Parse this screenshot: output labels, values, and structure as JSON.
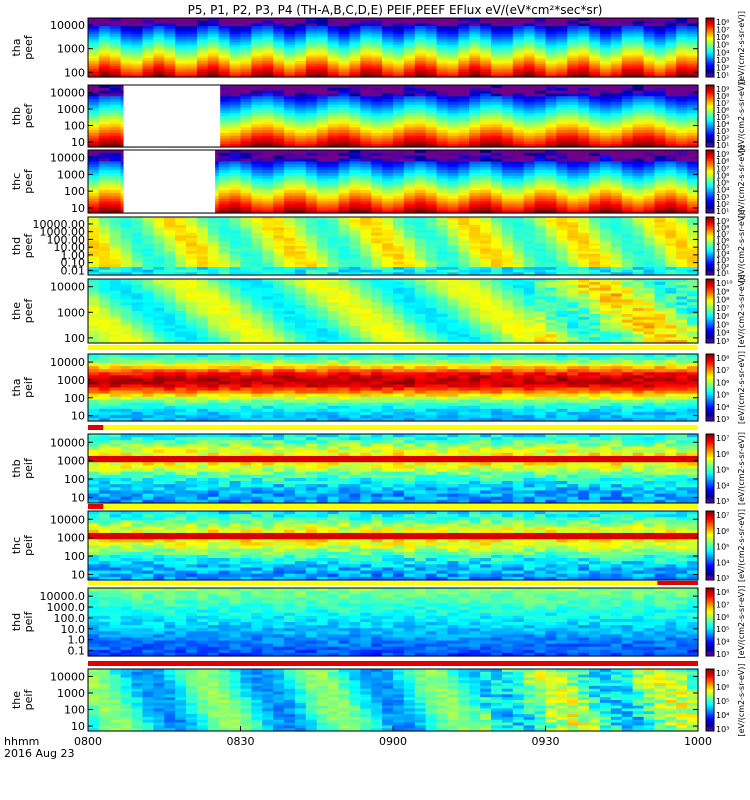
{
  "chart_data": {
    "type": "heatmap",
    "title": "P5, P1, P2, P3, P4 (TH-A,B,C,D,E) PEIF,PEEF EFlux eV/(eV*cm²*sec*sr)",
    "time_axis": {
      "ticks": [
        "0800",
        "0830",
        "0900",
        "0930",
        "1000"
      ],
      "label_lines": [
        "hhmm",
        "2016 Aug 23"
      ],
      "range": [
        "08:00",
        "10:00"
      ]
    },
    "colorbar_label": "[eV/(cm2-s-sr-eV)]",
    "panels": [
      {
        "id": "tha-peef",
        "label": [
          "tha",
          "peef"
        ],
        "y_scale": "log",
        "y_ticks": [
          "10000",
          "1000",
          "100"
        ],
        "colorbar_ticks": [
          "10⁸",
          "10⁷",
          "10⁶",
          "10⁵",
          "10⁴",
          "10³",
          "10²",
          "10¹"
        ],
        "data_gap": null,
        "status_bar": null
      },
      {
        "id": "thb-peef",
        "label": [
          "thb",
          "peef"
        ],
        "y_scale": "log",
        "y_ticks": [
          "10000",
          "1000",
          "100",
          "10"
        ],
        "colorbar_ticks": [
          "10⁹",
          "10⁸",
          "10⁷",
          "10⁶",
          "10⁵",
          "10⁴",
          "10³",
          "10²",
          "10¹"
        ],
        "data_gap": [
          "08:07",
          "08:26"
        ],
        "status_bar": null
      },
      {
        "id": "thc-peef",
        "label": [
          "thc",
          "peef"
        ],
        "y_scale": "log",
        "y_ticks": [
          "10000",
          "1000",
          "100",
          "10"
        ],
        "colorbar_ticks": [
          "10⁹",
          "10⁸",
          "10⁷",
          "10⁶",
          "10⁵",
          "10⁴",
          "10³",
          "10²",
          "10¹"
        ],
        "data_gap": [
          "08:07",
          "08:25"
        ],
        "status_bar": null
      },
      {
        "id": "thd-peef",
        "label": [
          "thd",
          "peef"
        ],
        "y_scale": "log",
        "y_ticks": [
          "10000.00",
          "1000.00",
          "100.00",
          "10.00",
          "1.00",
          "0.10",
          "0.01"
        ],
        "colorbar_ticks": [
          "10⁹",
          "10⁸",
          "10⁷",
          "10⁶",
          "10⁵",
          "10⁴",
          "10³",
          "10²",
          "10¹"
        ],
        "data_gap": null,
        "status_bar": null
      },
      {
        "id": "the-peef",
        "label": [
          "the",
          "peef"
        ],
        "y_scale": "log",
        "y_ticks": [
          "10000",
          "1000",
          "100"
        ],
        "colorbar_ticks": [
          "10¹⁰",
          "10⁹",
          "10⁸",
          "10⁷",
          "10⁶",
          "10⁵",
          "10⁴",
          "10³"
        ],
        "data_gap": null,
        "status_bar": {
          "color": "yellow"
        }
      },
      {
        "id": "tha-peif",
        "label": [
          "tha",
          "peif"
        ],
        "y_scale": "log",
        "y_ticks": [
          "10000",
          "1000",
          "100",
          "10"
        ],
        "colorbar_ticks": [
          "10⁸",
          "10⁷",
          "10⁶",
          "10⁵",
          "10⁴",
          "10³"
        ],
        "data_gap": null,
        "status_bar": {
          "color": "yellow",
          "red_range": [
            "08:00",
            "08:03"
          ]
        }
      },
      {
        "id": "thb-peif",
        "label": [
          "thb",
          "peif"
        ],
        "y_scale": "log",
        "y_ticks": [
          "10000",
          "1000",
          "100",
          "10"
        ],
        "colorbar_ticks": [
          "10⁷",
          "10⁶",
          "10⁵",
          "10⁴",
          "10³"
        ],
        "data_gap": null,
        "status_bar": {
          "color": "yellow",
          "red_range": [
            "08:00",
            "08:03"
          ]
        }
      },
      {
        "id": "thc-peif",
        "label": [
          "thc",
          "peif"
        ],
        "y_scale": "log",
        "y_ticks": [
          "10000",
          "1000",
          "100",
          "10"
        ],
        "colorbar_ticks": [
          "10⁷",
          "10⁶",
          "10⁵",
          "10⁴",
          "10³"
        ],
        "data_gap": null,
        "status_bar": {
          "color": "yellow",
          "red_range": [
            "09:52",
            "10:00"
          ]
        }
      },
      {
        "id": "thd-peif",
        "label": [
          "thd",
          "peif"
        ],
        "y_scale": "log",
        "y_ticks": [
          "10000.0",
          "1000.0",
          "100.0",
          "10.0",
          "1.0",
          "0.1"
        ],
        "colorbar_ticks": [
          "10⁸",
          "10⁷",
          "10⁶",
          "10⁵",
          "10⁴",
          "10³"
        ],
        "data_gap": null,
        "status_bar": {
          "color": "red"
        }
      },
      {
        "id": "the-peif",
        "label": [
          "the",
          "peif"
        ],
        "y_scale": "log",
        "y_ticks": [
          "10000",
          "1000",
          "100",
          "10"
        ],
        "colorbar_ticks": [
          "10⁷",
          "10⁶",
          "10⁵",
          "10⁴",
          "10³"
        ],
        "data_gap": null,
        "status_bar": null
      }
    ]
  },
  "colors": {
    "white_gap": "#ffffff",
    "status_yellow": "#ffff00",
    "status_red": "#e00000"
  }
}
